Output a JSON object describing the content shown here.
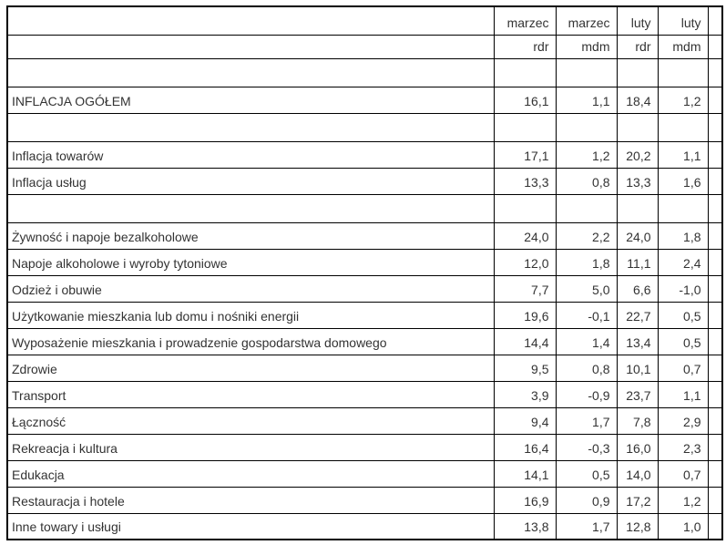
{
  "chart_data": {
    "type": "table",
    "header_months": [
      "marzec",
      "marzec",
      "luty",
      "luty"
    ],
    "header_measures": [
      "rdr",
      "mdm",
      "rdr",
      "mdm"
    ],
    "value_columns": [
      "marzec rdr",
      "marzec mdm",
      "luty rdr",
      "luty mdm"
    ],
    "number_format": "comma-decimal-1",
    "rows": [
      {
        "label": "INFLACJA OGÓŁEM",
        "values": [
          16.1,
          1.1,
          18.4,
          1.2
        ]
      },
      {
        "label": "Inflacja towarów",
        "values": [
          17.1,
          1.2,
          20.2,
          1.1
        ]
      },
      {
        "label": "Inflacja usług",
        "values": [
          13.3,
          0.8,
          13.3,
          1.6
        ]
      },
      {
        "label": "Żywność i napoje bezalkoholowe",
        "values": [
          24.0,
          2.2,
          24.0,
          1.8
        ]
      },
      {
        "label": "Napoje alkoholowe i wyroby tytoniowe",
        "values": [
          12.0,
          1.8,
          11.1,
          2.4
        ]
      },
      {
        "label": "Odzież i obuwie",
        "values": [
          7.7,
          5.0,
          6.6,
          -1.0
        ]
      },
      {
        "label": "Użytkowanie mieszkania lub domu i nośniki energii",
        "values": [
          19.6,
          -0.1,
          22.7,
          0.5
        ]
      },
      {
        "label": "Wyposażenie mieszkania i prowadzenie gospodarstwa domowego",
        "values": [
          14.4,
          1.4,
          13.4,
          0.5
        ]
      },
      {
        "label": "Zdrowie",
        "values": [
          9.5,
          0.8,
          10.1,
          0.7
        ]
      },
      {
        "label": "Transport",
        "values": [
          3.9,
          -0.9,
          23.7,
          1.1
        ]
      },
      {
        "label": "Łączność",
        "values": [
          9.4,
          1.7,
          7.8,
          2.9
        ]
      },
      {
        "label": "Rekreacja i kultura",
        "values": [
          16.4,
          -0.3,
          16.0,
          2.3
        ]
      },
      {
        "label": "Edukacja",
        "values": [
          14.1,
          0.5,
          14.0,
          0.7
        ]
      },
      {
        "label": "Restauracja i hotele",
        "values": [
          16.9,
          0.9,
          17.2,
          1.2
        ]
      },
      {
        "label": "Inne towary i usługi",
        "values": [
          13.8,
          1.7,
          12.8,
          1.0
        ]
      }
    ]
  },
  "layout": {
    "row_order": [
      "spacer",
      0,
      "spacer",
      1,
      2,
      "spacer",
      3,
      4,
      5,
      6,
      7,
      8,
      9,
      10,
      11,
      12,
      13,
      14
    ]
  },
  "style": {
    "border_color": "#000000",
    "text_color": "#333333",
    "background": "#ffffff"
  }
}
